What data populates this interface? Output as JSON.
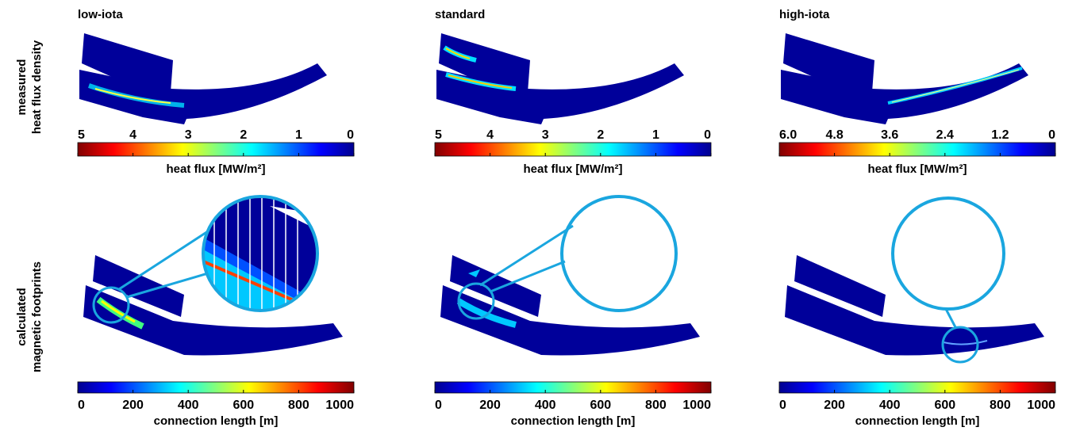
{
  "columns": [
    "low-iota",
    "standard",
    "high-iota"
  ],
  "rows": [
    [
      "measured",
      "heat flux density"
    ],
    [
      "calculated",
      "magnetic footprints"
    ]
  ],
  "colorbars": [
    {
      "label": "heat flux [MW/m²]",
      "lim": [
        5,
        0
      ],
      "ticks": [
        5,
        4,
        3,
        2,
        1,
        0
      ]
    },
    {
      "label": "heat flux [MW/m²]",
      "lim": [
        5,
        0
      ],
      "ticks": [
        5,
        4,
        3,
        2,
        1,
        0
      ]
    },
    {
      "label": "heat flux [MW/m²]",
      "lim": [
        6,
        0
      ],
      "ticks": [
        {
          "value": 6,
          "label": "6.0"
        },
        4.8,
        3.6,
        2.4,
        1.2,
        0
      ]
    },
    {
      "label": "connection length [m]",
      "lim": [
        0,
        1000
      ],
      "ticks": [
        0,
        200,
        400,
        600,
        800,
        1000
      ]
    },
    {
      "label": "connection length [m]",
      "lim": [
        0,
        1000
      ],
      "ticks": [
        0,
        200,
        400,
        600,
        800,
        1000
      ]
    },
    {
      "label": "connection length [m]",
      "lim": [
        0,
        1000
      ],
      "ticks": [
        0,
        200,
        400,
        600,
        800,
        1000
      ]
    }
  ]
}
